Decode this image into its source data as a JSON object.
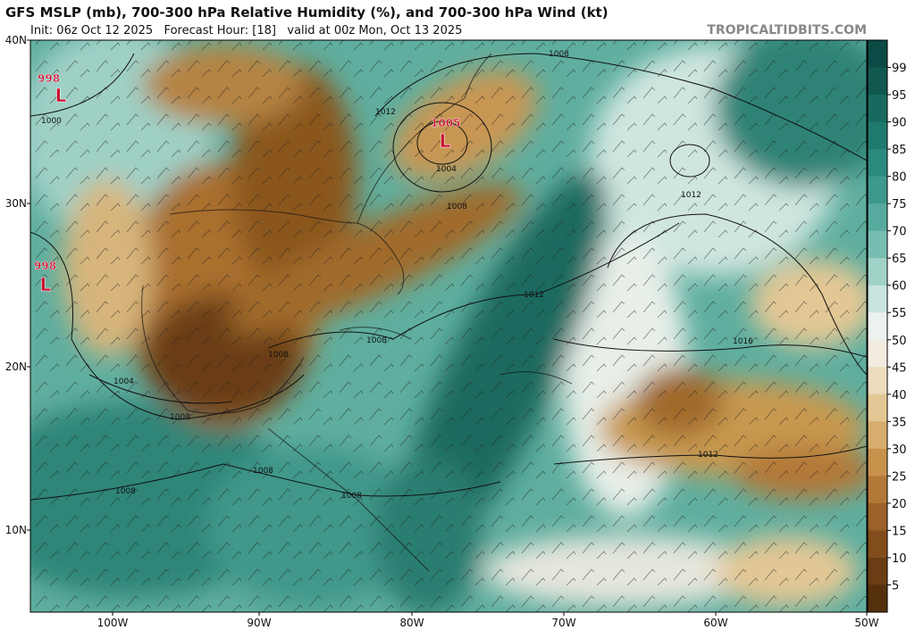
{
  "header": {
    "title": "GFS MSLP (mb), 700-300 hPa Relative Humidity (%), and 700-300 hPa Wind (kt)",
    "subtitle": "Init: 06z Oct 12 2025   Forecast Hour: [18]   valid at 00z Mon, Oct 13 2025",
    "site": "TROPICALTIDBITS.COM"
  },
  "map": {
    "lat_labels": [
      "40N",
      "30N",
      "20N",
      "10N"
    ],
    "lon_labels": [
      "100W",
      "90W",
      "80W",
      "70W",
      "60W",
      "50W"
    ],
    "pressure_systems": [
      {
        "pressure": "998",
        "symbol": "L"
      },
      {
        "pressure": "1005",
        "symbol": "L"
      },
      {
        "pressure": "998",
        "symbol": "L"
      }
    ],
    "isobar_labels": [
      "1000",
      "1008",
      "1012",
      "1004",
      "1008",
      "1012",
      "1012",
      "1008",
      "1008",
      "1004",
      "1008",
      "1016",
      "1012",
      "1008",
      "1008",
      "1008"
    ]
  },
  "colorbar": {
    "levels": [
      99,
      95,
      90,
      85,
      80,
      75,
      70,
      65,
      60,
      55,
      50,
      45,
      40,
      35,
      30,
      25,
      20,
      15,
      10,
      5
    ],
    "colors": [
      "#0c4a45",
      "#12584f",
      "#186a5f",
      "#1f7a6e",
      "#2b8a7e",
      "#3d998d",
      "#56aa9e",
      "#78bdb2",
      "#a0d2c8",
      "#c8e4de",
      "#ecf2ef",
      "#f2ece0",
      "#ecdcbc",
      "#e3c794",
      "#d6ad6c",
      "#c6924c",
      "#b27838",
      "#9a6129",
      "#824d1d",
      "#6a3d14",
      "#55300d"
    ]
  }
}
